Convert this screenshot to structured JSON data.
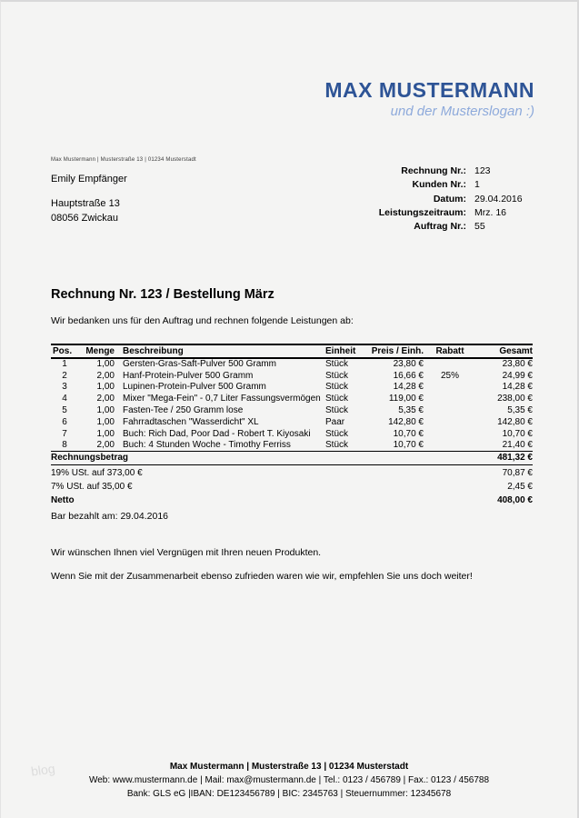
{
  "colors": {
    "brand_name": "#2E5496",
    "brand_slogan": "#8EAADB",
    "page_background": "#f4f4f3"
  },
  "brand": {
    "name": "MAX MUSTERMANN",
    "slogan": "und der Musterslogan :)"
  },
  "recipient": {
    "sender_line": "Max Mustermann | Musterstraße 13 | 01234 Musterstadt",
    "name": "Emily Empfänger",
    "street": "Hauptstraße 13",
    "city": "08056 Zwickau"
  },
  "meta": {
    "rows": [
      {
        "label": "Rechnung Nr.:",
        "value": "123"
      },
      {
        "label": "Kunden Nr.:",
        "value": "1"
      },
      {
        "label": "Datum:",
        "value": "29.04.2016"
      },
      {
        "label": "Leistungszeitraum:",
        "value": "Mrz. 16"
      },
      {
        "label": "Auftrag Nr.:",
        "value": "55"
      }
    ]
  },
  "title": "Rechnung Nr. 123 / Bestellung März",
  "intro": "Wir bedanken uns für den Auftrag und rechnen folgende Leistungen ab:",
  "table": {
    "headers": [
      "Pos.",
      "Menge",
      "Beschreibung",
      "Einheit",
      "Preis / Einh.",
      "Rabatt",
      "Gesamt"
    ],
    "rows": [
      [
        "1",
        "1,00",
        "Gersten-Gras-Saft-Pulver 500 Gramm",
        "Stück",
        "23,80 €",
        "",
        "23,80 €"
      ],
      [
        "2",
        "2,00",
        "Hanf-Protein-Pulver 500 Gramm",
        "Stück",
        "16,66 €",
        "25%",
        "24,99 €"
      ],
      [
        "3",
        "1,00",
        "Lupinen-Protein-Pulver 500 Gramm",
        "Stück",
        "14,28 €",
        "",
        "14,28 €"
      ],
      [
        "4",
        "2,00",
        "Mixer \"Mega-Fein\" - 0,7 Liter Fassungsvermögen",
        "Stück",
        "119,00 €",
        "",
        "238,00 €"
      ],
      [
        "5",
        "1,00",
        "Fasten-Tee / 250 Gramm lose",
        "Stück",
        "5,35 €",
        "",
        "5,35 €"
      ],
      [
        "6",
        "1,00",
        "Fahrradtaschen \"Wasserdicht\" XL",
        "Paar",
        "142,80 €",
        "",
        "142,80 €"
      ],
      [
        "7",
        "1,00",
        "Buch: Rich Dad, Poor Dad - Robert T. Kiyosaki",
        "Stück",
        "10,70 €",
        "",
        "10,70 €"
      ],
      [
        "8",
        "2,00",
        "Buch: 4 Stunden Woche - Timothy Ferriss",
        "Stück",
        "10,70 €",
        "",
        "21,40 €"
      ]
    ]
  },
  "totals": {
    "grand": {
      "label": "Rechnungsbetrag",
      "value": "481,32 €"
    },
    "vat19": {
      "label": "19% USt. auf 373,00 €",
      "value": "70,87 €"
    },
    "vat7": {
      "label": "7% USt. auf 35,00 €",
      "value": "2,45 €"
    },
    "netto": {
      "label": "Netto",
      "value": "408,00 €"
    }
  },
  "paid_note": "Bar bezahlt am: 29.04.2016",
  "closing": {
    "line1": "Wir wünschen Ihnen viel Vergnügen mit Ihren neuen Produkten.",
    "line2": "Wenn Sie mit der Zusammenarbeit ebenso zufrieden waren wie wir, empfehlen Sie uns doch weiter!"
  },
  "footer": {
    "line1": "Max Mustermann | Musterstraße 13 | 01234 Musterstadt",
    "line2": "Web: www.mustermann.de | Mail: max@mustermann.de | Tel.: 0123 / 456789 | Fax.: 0123 / 456788",
    "line3": "Bank: GLS eG |IBAN: DE123456789 | BIC: 2345763 | Steuernummer: 12345678"
  },
  "watermark": "blog"
}
